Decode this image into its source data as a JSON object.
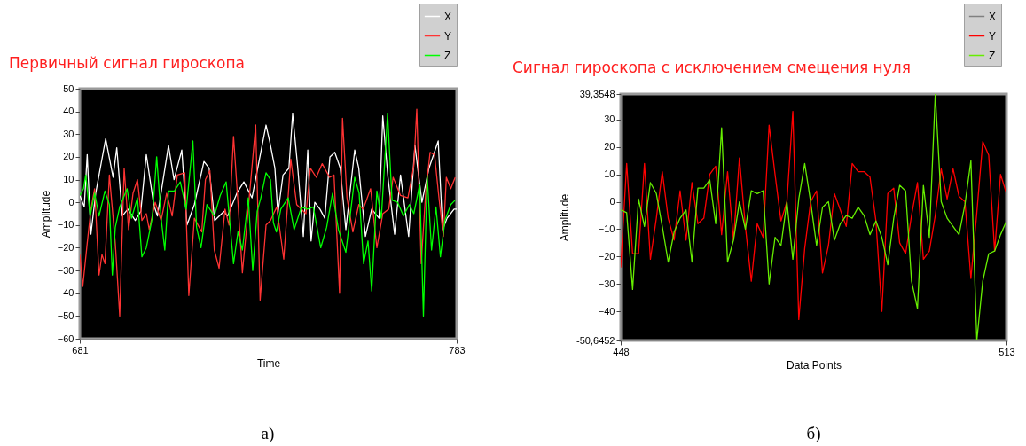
{
  "chart_data": [
    {
      "type": "line",
      "title": "Первичный сигнал гироскопа",
      "xlabel": "Time",
      "ylabel": "Amplitude",
      "xlim": [
        681,
        783
      ],
      "xticks": [
        681,
        783
      ],
      "ylim": [
        -60,
        50
      ],
      "yticks": [
        -60,
        -50,
        -40,
        -30,
        -20,
        -10,
        0,
        10,
        20,
        30,
        40,
        50
      ],
      "legend": "top right",
      "annotations": [
        "а)"
      ],
      "series": [
        {
          "name": "X",
          "color": "#ffffff",
          "x": [
            681,
            682.2,
            683,
            684,
            685.3,
            688,
            690,
            691,
            692.5,
            694,
            696,
            697.5,
            699,
            701,
            702,
            705,
            706.5,
            708.6,
            710,
            712,
            714.6,
            716,
            717.5,
            720,
            721,
            723.5,
            725.4,
            727.6,
            731.4,
            732.5,
            733.8,
            734.6,
            736,
            737.6,
            738.6,
            740,
            741.5,
            742.7,
            743.6,
            744.6,
            746,
            747.3,
            748.7,
            750,
            751.5,
            753,
            755.4,
            756.5,
            758.3,
            760,
            762,
            763,
            764.4,
            766.2,
            767.8,
            770,
            771.7,
            773.6,
            775.5,
            778,
            779.2,
            780.4,
            782.3,
            783
          ],
          "values": [
            3,
            -2,
            21,
            -14,
            4,
            28,
            11,
            24,
            -6,
            -3,
            -8,
            -4,
            21,
            -1,
            -6,
            25,
            10,
            23,
            -10,
            -1,
            18,
            15,
            -8,
            -4,
            -6,
            4,
            9,
            2,
            34,
            26,
            15,
            -5,
            12,
            15,
            39,
            15,
            -15,
            23,
            -17,
            0,
            -3,
            -7,
            20,
            22,
            15,
            -12,
            23,
            15,
            -15,
            -3,
            -7,
            38,
            11,
            -14,
            12,
            -15,
            25,
            0,
            15,
            27,
            -12,
            -7,
            -3,
            -3
          ]
        },
        {
          "name": "Y",
          "color": "#ff3333",
          "x": [
            681,
            681.8,
            683,
            684,
            685,
            686.2,
            687,
            687.8,
            689,
            690.6,
            691.8,
            693,
            694.2,
            695.4,
            696.6,
            697.8,
            699,
            699.8,
            701.4,
            703,
            704.5,
            706,
            707.4,
            709.4,
            710.5,
            712,
            714,
            715,
            716.2,
            717.4,
            718.7,
            720.3,
            721.4,
            722.6,
            723.8,
            725,
            726.2,
            727.4,
            728.6,
            729.8,
            731.4,
            732.6,
            734.3,
            736.2,
            738.1,
            739.7,
            742.2,
            743.4,
            745,
            746.6,
            748.6,
            749.8,
            751.3,
            752.1,
            753.3,
            754.9,
            756.5,
            757.7,
            759.7,
            761.4,
            763,
            764.6,
            765.8,
            767.8,
            769.8,
            771.4,
            772.2,
            773.4,
            774.6,
            775.8,
            777,
            778.2,
            779.4,
            780.2,
            781.4,
            782.6
          ],
          "values": [
            -23,
            -37,
            -18,
            -3,
            6,
            -32,
            -23,
            -27,
            12,
            -18,
            -50,
            15,
            -12,
            4,
            10,
            -8,
            -5,
            -12,
            0,
            -8,
            4,
            -6,
            12,
            13,
            -41,
            -7,
            -13,
            10,
            14,
            -21,
            -29,
            -3,
            -10,
            29,
            0,
            -31,
            -10,
            12,
            34,
            -43,
            -10,
            -8,
            -2,
            -25,
            19,
            -1,
            -5,
            15,
            11,
            17,
            11,
            12,
            -40,
            37,
            2,
            -13,
            -1,
            -3,
            6,
            -20,
            -5,
            -3,
            11,
            3,
            2,
            16,
            41,
            -27,
            4,
            22,
            21,
            2,
            -15,
            11,
            6,
            11
          ]
        },
        {
          "name": "Z",
          "color": "#00ff00",
          "x": [
            681,
            682,
            682.6,
            683.8,
            685,
            686.2,
            687.8,
            689,
            689.8,
            690.6,
            691.8,
            693.8,
            695,
            696.6,
            697.8,
            699,
            700.6,
            701.8,
            703,
            704,
            705,
            706.6,
            708.2,
            709.8,
            711.6,
            712.6,
            713.8,
            715.4,
            717.4,
            719,
            720.6,
            722.6,
            723.8,
            725,
            726.6,
            727.8,
            729,
            730,
            731.4,
            732.6,
            733.4,
            734.2,
            735.4,
            737.4,
            739,
            741,
            742.6,
            744.2,
            746.2,
            747.8,
            749.4,
            751,
            753,
            755.4,
            756.6,
            757.8,
            759,
            760,
            761.4,
            762.6,
            764.3,
            765.5,
            767,
            768.6,
            770.2,
            771.4,
            773,
            774,
            775,
            776.2,
            777.4,
            778.6,
            779.8,
            781.4,
            782.6
          ],
          "values": [
            3,
            6,
            12,
            -6,
            4,
            -6,
            5,
            -1,
            -32,
            -11,
            -2,
            6,
            -7,
            2,
            -24,
            -20,
            -7,
            20,
            -7,
            -21,
            5,
            5,
            9,
            -3,
            27,
            -11,
            -20,
            -1,
            -6,
            3,
            9,
            -27,
            -13,
            -21,
            2,
            -30,
            -4,
            2,
            13,
            10,
            -9,
            -13,
            -3,
            2,
            -12,
            -2,
            -3,
            -2,
            -20,
            -11,
            4,
            -12,
            -22,
            11,
            4,
            -27,
            -17,
            -39,
            5,
            -7,
            39,
            1,
            0,
            -6,
            -1,
            -5,
            8,
            -50,
            12,
            -21,
            -2,
            -24,
            -8,
            -1,
            1
          ]
        }
      ]
    },
    {
      "type": "line",
      "title": "Сигнал гироскопа с исключением смещения нуля",
      "xlabel": "Data Points",
      "ylabel": "Amplitude",
      "xlim": [
        448,
        513
      ],
      "xticks": [
        448,
        513
      ],
      "ylim": [
        -50.6452,
        39.3548
      ],
      "yticks": [
        {
          "value": -50.6452,
          "label": "-50,6452"
        },
        -40,
        -30,
        -20,
        -10,
        0,
        10,
        20,
        30,
        {
          "value": 39.3548,
          "label": "39,3548"
        }
      ],
      "legend": "top right",
      "annotations": [
        "б)"
      ],
      "x": [
        448,
        449,
        450,
        451,
        452,
        453,
        454,
        455,
        456,
        457,
        458,
        459,
        460,
        461,
        462,
        463,
        464,
        465,
        466,
        467,
        468,
        469,
        470,
        471,
        472,
        473,
        474,
        475,
        476,
        477,
        478,
        479,
        480,
        481,
        482,
        483,
        484,
        485,
        486,
        487,
        488,
        489,
        490,
        491,
        492,
        493,
        494,
        495,
        496,
        497,
        498,
        499,
        500,
        501,
        502,
        503,
        504,
        505,
        506,
        507,
        508,
        509,
        510,
        511,
        512,
        513
      ],
      "series": [
        {
          "name": "X",
          "color": "#808080",
          "values": [
            null,
            null,
            null,
            null,
            null,
            null,
            null,
            null,
            null,
            null,
            null,
            null,
            null,
            null,
            null,
            null,
            null,
            null,
            null,
            null,
            null,
            null,
            null,
            null,
            null,
            null,
            null,
            null,
            null,
            null,
            null,
            null,
            null,
            null,
            null,
            null,
            null,
            null,
            null,
            null,
            null,
            null,
            null,
            null,
            null,
            null,
            null,
            null,
            null,
            null,
            null,
            null,
            null,
            null,
            null,
            null,
            null,
            null,
            null,
            null,
            null,
            null,
            null,
            null,
            null,
            null
          ]
        },
        {
          "name": "Y",
          "color": "#ff0000",
          "values": [
            -24,
            14,
            -19,
            -19,
            14,
            -21,
            -6,
            11,
            -6,
            -14,
            4,
            -14,
            7,
            -8,
            -6,
            10,
            13,
            -12,
            11,
            -14,
            16,
            -9,
            -29,
            -8,
            -13,
            28,
            10,
            -7,
            0,
            33,
            -43,
            -17,
            0,
            4,
            -26,
            -16,
            3,
            -3,
            -9,
            14,
            11,
            11,
            9,
            -7,
            -40,
            3,
            5,
            -15,
            -19,
            -5,
            7,
            -21,
            -18,
            -5,
            12,
            1,
            12,
            2,
            0,
            -28,
            -4,
            22,
            17,
            -18,
            10,
            3
          ]
        },
        {
          "name": "Z",
          "color": "#66ee00",
          "values": [
            -3,
            -4,
            -32,
            1,
            -9,
            7,
            3,
            -9,
            -22,
            -11,
            -6,
            -3,
            -22,
            5,
            5,
            8,
            -8,
            27,
            -22,
            -14,
            0,
            -10,
            4,
            3,
            4,
            -30,
            -13,
            -16,
            0,
            -21,
            1,
            14,
            0,
            -16,
            -2,
            0,
            -14,
            -8,
            -5,
            -6,
            -2,
            -5,
            -12,
            -7,
            -13,
            -23,
            -6,
            6,
            4,
            -29,
            -39,
            6,
            -13,
            39.3548,
            0,
            -6,
            -9,
            -12,
            -1,
            15,
            -50.6452,
            -29,
            -19,
            -18,
            -12,
            -7
          ]
        }
      ]
    }
  ]
}
